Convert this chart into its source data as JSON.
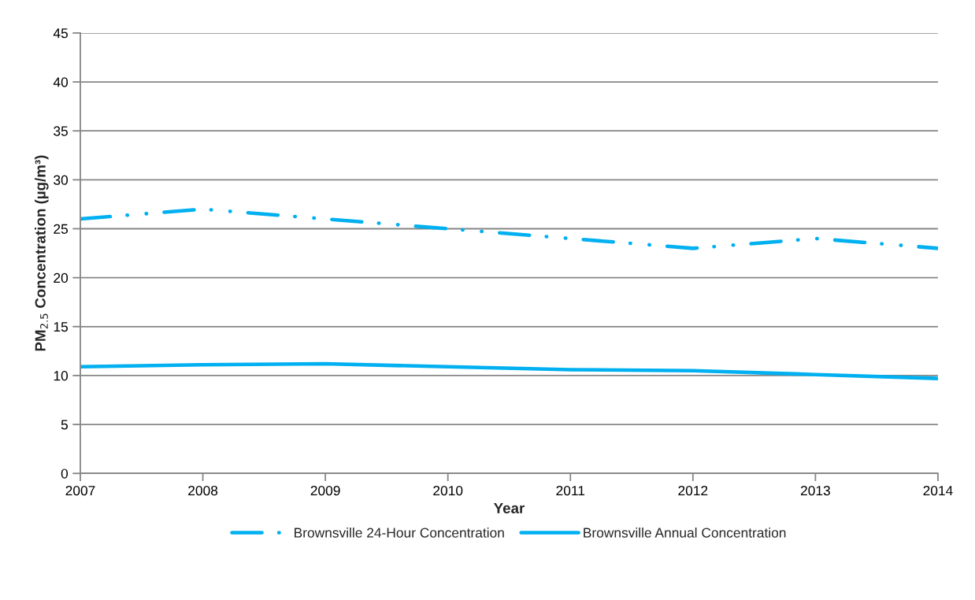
{
  "chart_data": {
    "type": "line",
    "xlabel": "Year",
    "ylabel": "PM$_{2.5}$ Concentration (µg/m³)",
    "x": [
      2007,
      2008,
      2009,
      2010,
      2011,
      2012,
      2013,
      2014
    ],
    "xlim": [
      2007,
      2014
    ],
    "xticks": [
      2007,
      2008,
      2009,
      2010,
      2011,
      2012,
      2013,
      2014
    ],
    "ylim": [
      0,
      45
    ],
    "yticks": [
      0,
      5,
      10,
      15,
      20,
      25,
      30,
      35,
      40,
      45
    ],
    "grid": "y",
    "legend": "bottom",
    "series": [
      {
        "name": "Brownsville 24-Hour Concentration",
        "color": "#00b0f0",
        "line_style": "dashdotdot",
        "values": [
          26,
          27,
          26,
          25,
          24,
          23,
          24,
          23
        ]
      },
      {
        "name": "Brownsville Annual Concentration",
        "color": "#00b0f0",
        "line_style": "solid",
        "values": [
          10.9,
          11.1,
          11.2,
          10.9,
          10.6,
          10.5,
          10.1,
          9.7
        ]
      }
    ]
  }
}
